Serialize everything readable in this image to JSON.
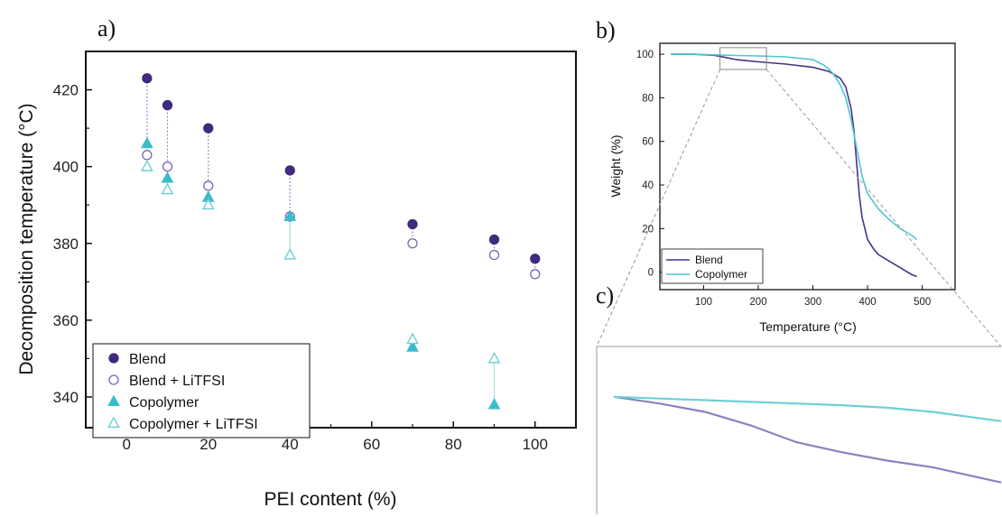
{
  "figure": {
    "panel_labels": [
      "a)",
      "b)",
      "c)"
    ]
  },
  "chart_data": [
    {
      "panel": "a)",
      "type": "scatter",
      "xlabel": "PEI content (%)",
      "ylabel": "Decomposition temperature (°C)",
      "xlim": [
        -10,
        110
      ],
      "ylim": [
        332,
        430
      ],
      "xticks": [
        0,
        20,
        40,
        60,
        80,
        100
      ],
      "yticks": [
        340,
        360,
        380,
        400,
        420
      ],
      "grid": false,
      "legend_position": "bottom-left",
      "series": [
        {
          "name": "Blend",
          "marker": "filled-circle",
          "color": "#3f2a7d",
          "x": [
            5,
            10,
            20,
            40,
            70,
            90,
            100
          ],
          "y": [
            423,
            416,
            410,
            399,
            385,
            381,
            376
          ]
        },
        {
          "name": "Blend + LiTFSI",
          "marker": "open-circle",
          "color": "#7b63b6",
          "x": [
            5,
            10,
            20,
            40,
            70,
            90,
            100
          ],
          "y": [
            403,
            400,
            395,
            387,
            380,
            377,
            372
          ]
        },
        {
          "name": "Copolymer",
          "marker": "filled-triangle",
          "color": "#3bbcc8",
          "x": [
            5,
            10,
            20,
            40,
            70,
            90
          ],
          "y": [
            406,
            397,
            392,
            387,
            353,
            338
          ]
        },
        {
          "name": "Copolymer + LiTFSI",
          "marker": "open-triangle",
          "color": "#66ccd6",
          "x": [
            5,
            10,
            20,
            40,
            70,
            90
          ],
          "y": [
            400,
            394,
            390,
            377,
            355,
            350
          ]
        }
      ],
      "connectors": [
        {
          "style": "dotted",
          "color": "#9a88cc",
          "x": [
            5,
            10,
            20,
            40,
            70,
            90,
            100
          ],
          "from": [
            423,
            416,
            410,
            399,
            385,
            381,
            376
          ],
          "to": [
            403,
            400,
            395,
            387,
            380,
            377,
            372
          ]
        },
        {
          "style": "solid",
          "color": "#a8dde3",
          "x": [
            5,
            10,
            20,
            40,
            70,
            90
          ],
          "from": [
            406,
            397,
            392,
            387,
            353,
            338
          ],
          "to": [
            400,
            394,
            390,
            377,
            355,
            350
          ]
        }
      ]
    },
    {
      "panel": "b)",
      "type": "line",
      "xlabel": "Temperature (°C)",
      "ylabel": "Weight (%)",
      "xlim": [
        20,
        560
      ],
      "ylim": [
        -8,
        105
      ],
      "xticks": [
        100,
        200,
        300,
        400,
        500
      ],
      "yticks": [
        0,
        20,
        40,
        60,
        80,
        100
      ],
      "grid": false,
      "legend_position": "bottom-left",
      "series": [
        {
          "name": "Blend",
          "color": "#4a3288",
          "x": [
            40,
            80,
            120,
            140,
            160,
            180,
            200,
            250,
            300,
            330,
            350,
            360,
            370,
            375,
            380,
            385,
            390,
            400,
            410,
            420,
            440,
            460,
            480,
            490
          ],
          "y": [
            100,
            100,
            99.5,
            98.5,
            97.5,
            97,
            96.5,
            95.5,
            94,
            92,
            89,
            85,
            75,
            65,
            50,
            35,
            25,
            15,
            11,
            8,
            5,
            2,
            -1,
            -2
          ]
        },
        {
          "name": "Copolymer",
          "color": "#4cc6d2",
          "x": [
            40,
            80,
            120,
            160,
            200,
            250,
            300,
            320,
            330,
            340,
            350,
            360,
            370,
            380,
            390,
            400,
            420,
            440,
            460,
            480,
            490
          ],
          "y": [
            100,
            100,
            99.7,
            99.4,
            99.2,
            98.8,
            97.5,
            95,
            93,
            90,
            86,
            80,
            70,
            57,
            44,
            36,
            29,
            24,
            20,
            17,
            15
          ]
        }
      ],
      "inset_box": {
        "x": [
          130,
          215
        ],
        "y": [
          93,
          103
        ]
      }
    },
    {
      "panel": "c)",
      "type": "line",
      "xlabel": "",
      "ylabel": "",
      "xlim": [
        130,
        215
      ],
      "ylim": [
        93,
        103
      ],
      "grid": false,
      "series": [
        {
          "name": "Blend",
          "color": "#8f7fc2",
          "x": [
            130,
            140,
            150,
            160,
            170,
            180,
            190,
            200,
            215
          ],
          "y": [
            100,
            99.6,
            99.1,
            98.3,
            97.3,
            96.7,
            96.2,
            95.8,
            94.9
          ]
        },
        {
          "name": "Copolymer",
          "color": "#6cd0d8",
          "x": [
            130,
            140,
            150,
            160,
            170,
            180,
            190,
            200,
            215
          ],
          "y": [
            100,
            99.9,
            99.8,
            99.7,
            99.6,
            99.5,
            99.35,
            99.1,
            98.55
          ]
        }
      ]
    }
  ]
}
